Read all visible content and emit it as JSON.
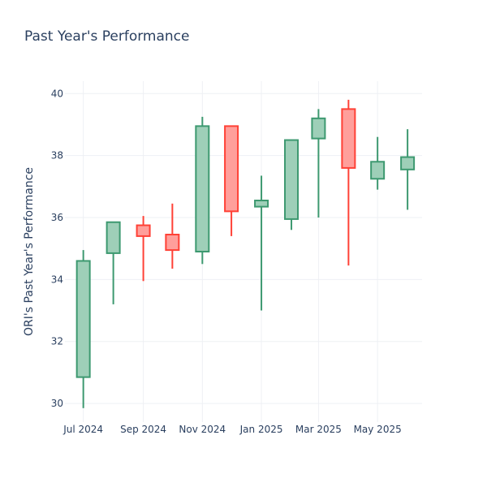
{
  "chart_data": {
    "type": "candlestick",
    "title": "Past Year's Performance",
    "xlabel": "",
    "ylabel": "ORI's Past Year's Performance",
    "ylim": [
      29.4,
      40.4
    ],
    "yticks": [
      30,
      32,
      34,
      36,
      38,
      40
    ],
    "xlim": [
      "2024-06-12",
      "2025-06-16"
    ],
    "xticks": [
      {
        "date": "2024-07-01",
        "label": "Jul 2024"
      },
      {
        "date": "2024-09-01",
        "label": "Sep 2024"
      },
      {
        "date": "2024-11-01",
        "label": "Nov 2024"
      },
      {
        "date": "2025-01-01",
        "label": "Jan 2025"
      },
      {
        "date": "2025-03-01",
        "label": "Mar 2025"
      },
      {
        "date": "2025-05-01",
        "label": "May 2025"
      }
    ],
    "grid": true,
    "colors": {
      "increasing": "#3d9970",
      "decreasing": "#ff4136",
      "increasing_fill": "#9ecfb8",
      "decreasing_fill": "#ff9f9b"
    },
    "candles": [
      {
        "date": "2024-07-01",
        "open": 30.85,
        "high": 34.95,
        "low": 29.85,
        "close": 34.6
      },
      {
        "date": "2024-08-01",
        "open": 34.85,
        "high": 35.85,
        "low": 33.2,
        "close": 35.85
      },
      {
        "date": "2024-09-01",
        "open": 35.75,
        "high": 36.05,
        "low": 33.95,
        "close": 35.4
      },
      {
        "date": "2024-10-01",
        "open": 35.45,
        "high": 36.45,
        "low": 34.35,
        "close": 34.95
      },
      {
        "date": "2024-11-01",
        "open": 34.9,
        "high": 39.25,
        "low": 34.5,
        "close": 38.95
      },
      {
        "date": "2024-12-01",
        "open": 38.95,
        "high": 38.95,
        "low": 35.4,
        "close": 36.2
      },
      {
        "date": "2025-01-01",
        "open": 36.35,
        "high": 37.35,
        "low": 33.0,
        "close": 36.55
      },
      {
        "date": "2025-02-01",
        "open": 35.95,
        "high": 38.5,
        "low": 35.6,
        "close": 38.5
      },
      {
        "date": "2025-03-01",
        "open": 38.55,
        "high": 39.5,
        "low": 36.0,
        "close": 39.2
      },
      {
        "date": "2025-04-01",
        "open": 39.5,
        "high": 39.8,
        "low": 34.45,
        "close": 37.6
      },
      {
        "date": "2025-05-01",
        "open": 37.25,
        "high": 38.6,
        "low": 36.9,
        "close": 37.8
      },
      {
        "date": "2025-06-01",
        "open": 37.55,
        "high": 38.85,
        "low": 36.25,
        "close": 37.95
      }
    ]
  }
}
